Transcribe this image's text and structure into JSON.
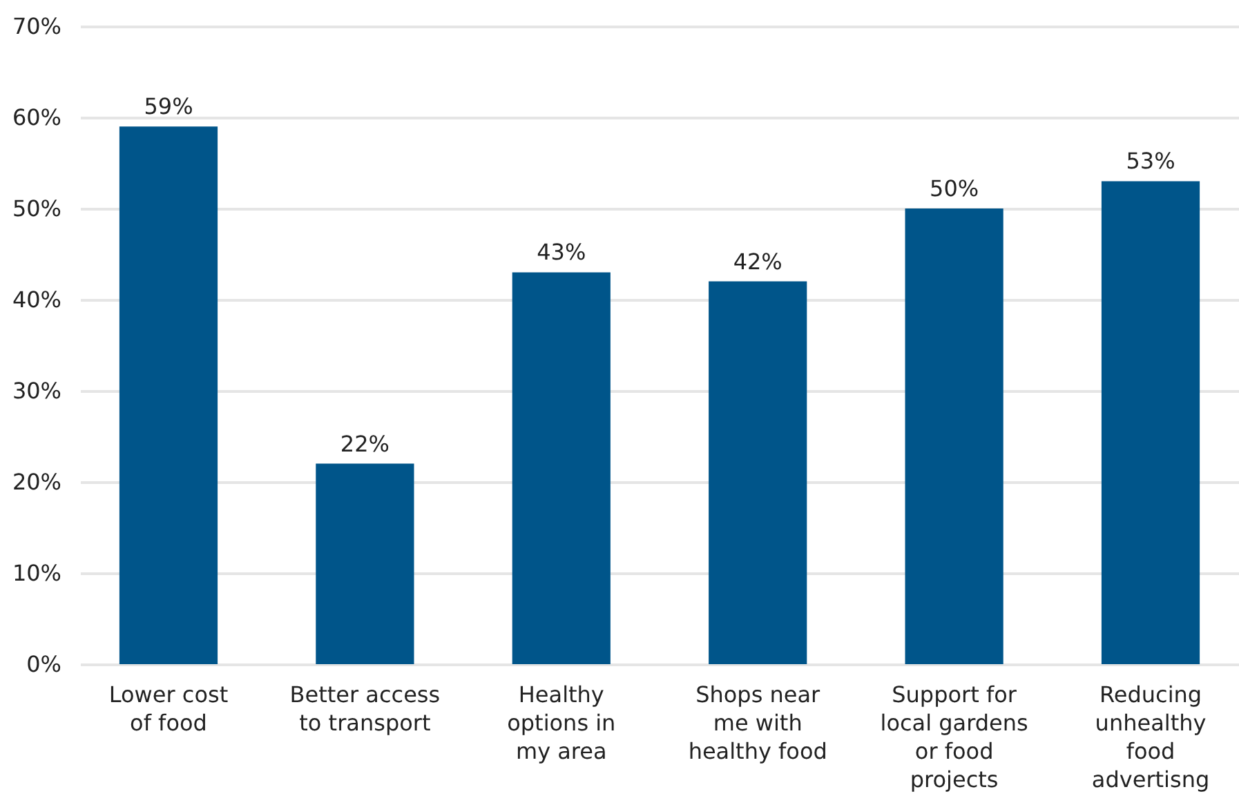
{
  "chart_data": {
    "type": "bar",
    "categories": [
      "Lower cost\nof food",
      "Better access\nto transport",
      "Healthy\noptions in\nmy area",
      "Shops near\nme with\nhealthy food",
      "Support for\nlocal gardens\nor food\nprojects",
      "Reducing\nunhealthy\nfood\nadvertisng"
    ],
    "values": [
      59,
      22,
      43,
      42,
      50,
      53
    ],
    "value_labels": [
      "59%",
      "22%",
      "43%",
      "42%",
      "50%",
      "53%"
    ],
    "color": "#00558a",
    "ylim": [
      0,
      70
    ],
    "yticks": [
      {
        "value": 0,
        "label": "0%"
      },
      {
        "value": 10,
        "label": "10%"
      },
      {
        "value": 20,
        "label": "20%"
      },
      {
        "value": 30,
        "label": "30%"
      },
      {
        "value": 40,
        "label": "40%"
      },
      {
        "value": 50,
        "label": "50%"
      },
      {
        "value": 60,
        "label": "60%"
      },
      {
        "value": 70,
        "label": "70%"
      }
    ],
    "grid": "y"
  }
}
